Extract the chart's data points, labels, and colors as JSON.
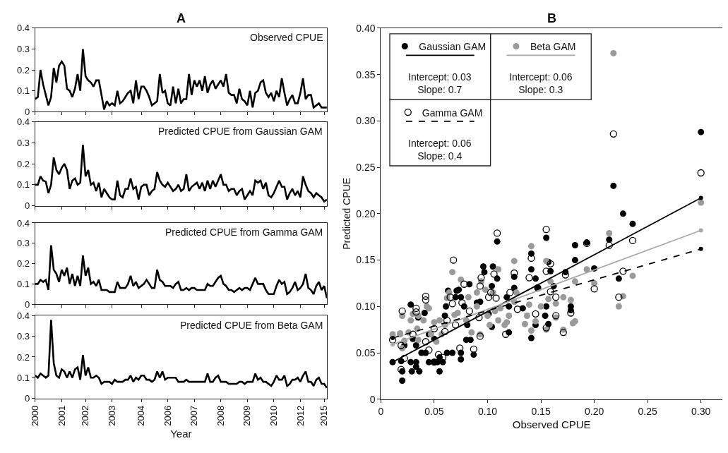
{
  "chart_data": [
    {
      "type": "line",
      "title": "A",
      "subtitle": "Observed CPUE",
      "ylim": [
        0,
        0.4
      ],
      "yticks": [
        0,
        0.1,
        0.2,
        0.3,
        0.4
      ],
      "tick_labels": "y",
      "grid": false,
      "legend": false,
      "categories": [
        "2000",
        null,
        null,
        null,
        null,
        null,
        null,
        null,
        null,
        null,
        "2001",
        null,
        null,
        null,
        null,
        null,
        null,
        null,
        null,
        "2002",
        null,
        null,
        null,
        null,
        null,
        null,
        null,
        null,
        null,
        "2003",
        null,
        null,
        null,
        null,
        null,
        null,
        null,
        null,
        null,
        null,
        "2004",
        null,
        null,
        null,
        null,
        null,
        null,
        null,
        null,
        null,
        "2006",
        null,
        null,
        null,
        null,
        null,
        null,
        null,
        null,
        null,
        "2007",
        null,
        null,
        null,
        null,
        null,
        null,
        null,
        null,
        null,
        "2008",
        null,
        null,
        null,
        null,
        null,
        null,
        null,
        null,
        null,
        "2009",
        null,
        null,
        null,
        null,
        null,
        null,
        null,
        null,
        null,
        "2010",
        null,
        null,
        null,
        null,
        null,
        null,
        null,
        null,
        null,
        "2012",
        null,
        null,
        null,
        null,
        null,
        null,
        null,
        null,
        "2015",
        null
      ],
      "series": [
        {
          "color": "#000000",
          "values": [
            0.06,
            0.07,
            0.2,
            0.13,
            0.08,
            0.03,
            0.07,
            0.21,
            0.14,
            0.22,
            0.24,
            0.22,
            0.11,
            0.1,
            0.07,
            0.11,
            0.18,
            0.1,
            0.3,
            0.17,
            0.15,
            0.14,
            0.12,
            0.15,
            0.15,
            0.08,
            0.01,
            0.05,
            0.03,
            0.04,
            0.03,
            0.1,
            0.04,
            0.05,
            0.07,
            0.09,
            0.1,
            0.04,
            0.15,
            0.06,
            0.12,
            0.12,
            0.1,
            0.07,
            0.03,
            0.04,
            0.05,
            0.18,
            0.09,
            0.1,
            0.04,
            0.03,
            0.12,
            0.04,
            0.11,
            0.04,
            0.06,
            0.06,
            0.18,
            0.08,
            0.15,
            0.12,
            0.15,
            0.1,
            0.17,
            0.09,
            0.13,
            0.15,
            0.11,
            0.13,
            0.15,
            0.12,
            0.18,
            0.09,
            0.08,
            0.08,
            0.04,
            0.11,
            0.06,
            0.05,
            0.03,
            0.1,
            0.02,
            0.09,
            0.1,
            0.14,
            0.15,
            0.09,
            0.07,
            0.09,
            0.05,
            0.1,
            0.07,
            0.16,
            0.09,
            0.03,
            0.06,
            0.08,
            0.04,
            0.04,
            0.09,
            0.16,
            0.06,
            0.08,
            0.08,
            0.02,
            0.03,
            0.04,
            0.02,
            0.02,
            0.02
          ]
        }
      ]
    },
    {
      "type": "line",
      "subtitle": "Predicted CPUE from Gaussian GAM",
      "ylim": [
        0,
        0.4
      ],
      "yticks": [
        0,
        0.1,
        0.2,
        0.3,
        0.4
      ],
      "tick_labels": "y",
      "grid": false,
      "legend": false,
      "categories": [
        "2000",
        null,
        null,
        null,
        null,
        null,
        null,
        null,
        null,
        null,
        "2001",
        null,
        null,
        null,
        null,
        null,
        null,
        null,
        null,
        "2002",
        null,
        null,
        null,
        null,
        null,
        null,
        null,
        null,
        null,
        "2003",
        null,
        null,
        null,
        null,
        null,
        null,
        null,
        null,
        null,
        null,
        "2004",
        null,
        null,
        null,
        null,
        null,
        null,
        null,
        null,
        null,
        "2006",
        null,
        null,
        null,
        null,
        null,
        null,
        null,
        null,
        null,
        "2007",
        null,
        null,
        null,
        null,
        null,
        null,
        null,
        null,
        null,
        "2008",
        null,
        null,
        null,
        null,
        null,
        null,
        null,
        null,
        null,
        "2009",
        null,
        null,
        null,
        null,
        null,
        null,
        null,
        null,
        null,
        "2010",
        null,
        null,
        null,
        null,
        null,
        null,
        null,
        null,
        null,
        "2012",
        null,
        null,
        null,
        null,
        null,
        null,
        null,
        null,
        "2015",
        null
      ],
      "series": [
        {
          "color": "#000000",
          "values": [
            0.1,
            0.1,
            0.14,
            0.12,
            0.115,
            0.06,
            0.1,
            0.23,
            0.17,
            0.15,
            0.18,
            0.2,
            0.17,
            0.08,
            0.12,
            0.13,
            0.1,
            0.11,
            0.29,
            0.14,
            0.17,
            0.1,
            0.11,
            0.07,
            0.11,
            0.04,
            0.08,
            0.06,
            0.04,
            0.03,
            0.03,
            0.12,
            0.05,
            0.04,
            0.08,
            0.08,
            0.13,
            0.08,
            0.09,
            0.03,
            0.09,
            0.1,
            0.1,
            0.05,
            0.07,
            0.08,
            0.16,
            0.12,
            0.1,
            0.09,
            0.11,
            0.09,
            0.07,
            0.08,
            0.1,
            0.07,
            0.08,
            0.15,
            0.07,
            0.09,
            0.1,
            0.11,
            0.08,
            0.11,
            0.07,
            0.12,
            0.08,
            0.12,
            0.09,
            0.12,
            0.15,
            0.1,
            0.1,
            0.07,
            0.08,
            0.08,
            0.05,
            0.07,
            0.08,
            0.03,
            0.05,
            0.07,
            0.05,
            0.12,
            0.11,
            0.12,
            0.08,
            0.11,
            0.05,
            0.04,
            0.06,
            0.09,
            0.12,
            0.09,
            0.09,
            0.03,
            0.06,
            0.08,
            0.05,
            0.07,
            0.04,
            0.14,
            0.1,
            0.07,
            0.06,
            0.04,
            0.06,
            0.05,
            0.04,
            0.02,
            0.03
          ]
        }
      ]
    },
    {
      "type": "line",
      "subtitle": "Predicted CPUE from Gamma GAM",
      "ylim": [
        0,
        0.4
      ],
      "yticks": [
        0,
        0.1,
        0.2,
        0.3,
        0.4
      ],
      "tick_labels": "y",
      "grid": false,
      "legend": false,
      "categories": [
        "2000",
        null,
        null,
        null,
        null,
        null,
        null,
        null,
        null,
        null,
        "2001",
        null,
        null,
        null,
        null,
        null,
        null,
        null,
        null,
        "2002",
        null,
        null,
        null,
        null,
        null,
        null,
        null,
        null,
        null,
        "2003",
        null,
        null,
        null,
        null,
        null,
        null,
        null,
        null,
        null,
        null,
        "2004",
        null,
        null,
        null,
        null,
        null,
        null,
        null,
        null,
        null,
        "2006",
        null,
        null,
        null,
        null,
        null,
        null,
        null,
        null,
        null,
        "2007",
        null,
        null,
        null,
        null,
        null,
        null,
        null,
        null,
        null,
        "2008",
        null,
        null,
        null,
        null,
        null,
        null,
        null,
        null,
        null,
        "2009",
        null,
        null,
        null,
        null,
        null,
        null,
        null,
        null,
        null,
        "2010",
        null,
        null,
        null,
        null,
        null,
        null,
        null,
        null,
        null,
        "2012",
        null,
        null,
        null,
        null,
        null,
        null,
        null,
        null,
        "2015",
        null
      ],
      "series": [
        {
          "color": "#000000",
          "values": [
            0.1,
            0.1,
            0.12,
            0.11,
            0.12,
            0.07,
            0.29,
            0.17,
            0.15,
            0.11,
            0.17,
            0.14,
            0.18,
            0.1,
            0.15,
            0.09,
            0.14,
            0.09,
            0.24,
            0.14,
            0.18,
            0.1,
            0.11,
            0.09,
            0.12,
            0.07,
            0.07,
            0.07,
            0.06,
            0.06,
            0.06,
            0.11,
            0.08,
            0.08,
            0.08,
            0.1,
            0.14,
            0.09,
            0.11,
            0.08,
            0.09,
            0.1,
            0.12,
            0.1,
            0.08,
            0.08,
            0.17,
            0.12,
            0.11,
            0.09,
            0.09,
            0.09,
            0.08,
            0.1,
            0.11,
            0.07,
            0.07,
            0.08,
            0.07,
            0.08,
            0.08,
            0.07,
            0.07,
            0.07,
            0.07,
            0.1,
            0.09,
            0.09,
            0.11,
            0.13,
            0.14,
            0.1,
            0.09,
            0.07,
            0.07,
            0.06,
            0.07,
            0.08,
            0.07,
            0.08,
            0.08,
            0.07,
            0.1,
            0.13,
            0.1,
            0.1,
            0.1,
            0.07,
            0.05,
            0.05,
            0.05,
            0.09,
            0.12,
            0.1,
            0.11,
            0.05,
            0.06,
            0.08,
            0.11,
            0.07,
            0.08,
            0.1,
            0.15,
            0.08,
            0.07,
            0.05,
            0.09,
            0.11,
            0.07,
            0.09,
            0.03
          ]
        }
      ]
    },
    {
      "type": "line",
      "subtitle": "Predicted CPUE from Beta GAM",
      "xlabel": "Year",
      "ylim": [
        0,
        0.4
      ],
      "yticks": [
        0,
        0.1,
        0.2,
        0.3,
        0.4
      ],
      "grid": false,
      "legend": false,
      "categories": [
        "2000",
        null,
        null,
        null,
        null,
        null,
        null,
        null,
        null,
        null,
        "2001",
        null,
        null,
        null,
        null,
        null,
        null,
        null,
        null,
        "2002",
        null,
        null,
        null,
        null,
        null,
        null,
        null,
        null,
        null,
        "2003",
        null,
        null,
        null,
        null,
        null,
        null,
        null,
        null,
        null,
        null,
        "2004",
        null,
        null,
        null,
        null,
        null,
        null,
        null,
        null,
        null,
        "2006",
        null,
        null,
        null,
        null,
        null,
        null,
        null,
        null,
        null,
        "2007",
        null,
        null,
        null,
        null,
        null,
        null,
        null,
        null,
        null,
        "2008",
        null,
        null,
        null,
        null,
        null,
        null,
        null,
        null,
        null,
        "2009",
        null,
        null,
        null,
        null,
        null,
        null,
        null,
        null,
        null,
        "2010",
        null,
        null,
        null,
        null,
        null,
        null,
        null,
        null,
        null,
        "2012",
        null,
        null,
        null,
        null,
        null,
        null,
        null,
        null,
        "2015",
        null
      ],
      "series": [
        {
          "color": "#000000",
          "values": [
            0.11,
            0.1,
            0.12,
            0.11,
            0.1,
            0.11,
            0.38,
            0.17,
            0.11,
            0.1,
            0.14,
            0.13,
            0.1,
            0.13,
            0.1,
            0.14,
            0.15,
            0.09,
            0.21,
            0.11,
            0.15,
            0.1,
            0.1,
            0.11,
            0.1,
            0.07,
            0.08,
            0.08,
            0.08,
            0.07,
            0.09,
            0.08,
            0.08,
            0.08,
            0.09,
            0.09,
            0.11,
            0.08,
            0.1,
            0.09,
            0.11,
            0.11,
            0.09,
            0.09,
            0.08,
            0.09,
            0.13,
            0.1,
            0.13,
            0.09,
            0.1,
            0.1,
            0.1,
            0.1,
            0.08,
            0.08,
            0.08,
            0.09,
            0.08,
            0.08,
            0.08,
            0.08,
            0.08,
            0.08,
            0.08,
            0.12,
            0.08,
            0.08,
            0.1,
            0.11,
            0.08,
            0.08,
            0.08,
            0.07,
            0.07,
            0.07,
            0.07,
            0.08,
            0.08,
            0.07,
            0.08,
            0.08,
            0.08,
            0.12,
            0.09,
            0.1,
            0.08,
            0.08,
            0.07,
            0.06,
            0.08,
            0.11,
            0.09,
            0.09,
            0.11,
            0.06,
            0.07,
            0.09,
            0.09,
            0.1,
            0.08,
            0.11,
            0.13,
            0.08,
            0.08,
            0.06,
            0.09,
            0.1,
            0.07,
            0.07,
            0.05
          ]
        }
      ]
    },
    {
      "type": "scatter",
      "title": "B",
      "xlabel": "Observed CPUE",
      "ylabel": "Predicted CPUE",
      "xlim": [
        0,
        0.32
      ],
      "ylim": [
        0,
        0.4
      ],
      "grid": false,
      "legend": "top left",
      "marker": "circle",
      "xticks": [
        0,
        0.05,
        {
          "value": 0.1,
          "label": "0.10"
        },
        0.15,
        {
          "value": 0.2,
          "label": "0.20"
        },
        0.25,
        {
          "value": 0.3,
          "label": "0.30"
        }
      ],
      "yticks": [
        0,
        0.05,
        {
          "value": 0.1,
          "label": "0.10"
        },
        0.15,
        {
          "value": 0.2,
          "label": "0.20"
        },
        0.25,
        {
          "value": 0.3,
          "label": "0.30"
        },
        0.35,
        {
          "value": 0.4,
          "label": "0.40"
        }
      ],
      "annotations": [
        "Intercept: 0.03\nSlope: 0.7",
        "Intercept: 0.06\nSlope: 0.3",
        "Intercept: 0.06\nSlope: 0.4"
      ],
      "series": [
        {
          "name": "Gaussian GAM",
          "color": "#000000",
          "x": [
            0.218,
            0.3,
            0.227,
            0.236,
            0.214,
            0.193,
            0.182,
            0.182,
            0.2,
            0.223,
            0.173,
            0.155,
            0.109,
            0.141,
            0.141,
            0.157,
            0.159,
            0.162,
            0.147,
            0.145,
            0.155,
            0.157,
            0.154,
            0.145,
            0.141,
            0.133,
            0.125,
            0.125,
            0.118,
            0.12,
            0.12,
            0.105,
            0.109,
            0.104,
            0.096,
            0.097,
            0.09,
            0.093,
            0.101,
            0.104,
            0.083,
            0.081,
            0.08,
            0.084,
            0.087,
            0.075,
            0.075,
            0.075,
            0.071,
            0.07,
            0.063,
            0.061,
            0.06,
            0.067,
            0.062,
            0.058,
            0.055,
            0.053,
            0.05,
            0.055,
            0.045,
            0.042,
            0.038,
            0.036,
            0.033,
            0.033,
            0.029,
            0.028,
            0.028,
            0.041,
            0.035,
            0.03,
            0.033,
            0.02,
            0.019,
            0.022,
            0.02,
            0.011,
            0.178,
            0.178,
            0.078,
            0.073,
            0.045,
            0.05
          ],
          "values": [
            0.23,
            0.288,
            0.2,
            0.189,
            0.172,
            0.169,
            0.166,
            0.15,
            0.141,
            0.13,
            0.137,
            0.174,
            0.17,
            0.157,
            0.14,
            0.148,
            0.138,
            0.122,
            0.12,
            0.13,
            0.1,
            0.081,
            0.09,
            0.08,
            0.066,
            0.098,
            0.132,
            0.12,
            0.11,
            0.1,
            0.072,
            0.143,
            0.13,
            0.122,
            0.143,
            0.137,
            0.104,
            0.105,
            0.092,
            0.078,
            0.124,
            0.08,
            0.064,
            0.064,
            0.048,
            0.05,
            0.043,
            0.11,
            0.117,
            0.11,
            0.117,
            0.1,
            0.09,
            0.05,
            0.05,
            0.04,
            0.03,
            0.04,
            0.04,
            0.045,
            0.04,
            0.05,
            0.05,
            0.03,
            0.04,
            0.035,
            0.03,
            0.04,
            0.102,
            0.093,
            0.088,
            0.065,
            0.058,
            0.03,
            0.041,
            0.058,
            0.02,
            0.04,
            0.1,
            0.096,
            0.1,
            0.118,
            0.07,
            0.065
          ]
        },
        {
          "name": "Beta GAM",
          "color": "#9a9a9a",
          "x": [
            0.218,
            0.3,
            0.214,
            0.227,
            0.223,
            0.236,
            0.193,
            0.2,
            0.182,
            0.178,
            0.18,
            0.182,
            0.171,
            0.171,
            0.164,
            0.164,
            0.159,
            0.155,
            0.157,
            0.15,
            0.155,
            0.141,
            0.139,
            0.137,
            0.135,
            0.141,
            0.145,
            0.125,
            0.127,
            0.12,
            0.116,
            0.118,
            0.11,
            0.105,
            0.11,
            0.1,
            0.102,
            0.098,
            0.094,
            0.09,
            0.09,
            0.093,
            0.085,
            0.082,
            0.08,
            0.075,
            0.072,
            0.069,
            0.067,
            0.064,
            0.062,
            0.06,
            0.055,
            0.05,
            0.052,
            0.045,
            0.043,
            0.04,
            0.035,
            0.034,
            0.03,
            0.028,
            0.026,
            0.022,
            0.02,
            0.018,
            0.02,
            0.011,
            0.018,
            0.035,
            0.047,
            0.057,
            0.107,
            0.112,
            0.125
          ],
          "values": [
            0.373,
            0.212,
            0.179,
            0.111,
            0.1,
            0.133,
            0.14,
            0.125,
            0.127,
            0.107,
            0.082,
            0.084,
            0.11,
            0.075,
            0.103,
            0.088,
            0.127,
            0.149,
            0.108,
            0.1,
            0.075,
            0.165,
            0.102,
            0.09,
            0.081,
            0.074,
            0.084,
            0.149,
            0.115,
            0.09,
            0.08,
            0.083,
            0.14,
            0.115,
            0.085,
            0.09,
            0.08,
            0.118,
            0.127,
            0.115,
            0.1,
            0.07,
            0.072,
            0.11,
            0.085,
            0.129,
            0.093,
            0.091,
            0.137,
            0.115,
            0.109,
            0.08,
            0.085,
            0.083,
            0.062,
            0.098,
            0.1,
            0.085,
            0.09,
            0.076,
            0.092,
            0.085,
            0.072,
            0.063,
            0.09,
            0.071,
            0.055,
            0.07,
            0.07,
            0.064,
            0.07,
            0.07,
            0.095,
            0.098,
            0.105
          ]
        },
        {
          "name": "Gamma GAM",
          "color": "#000000",
          "marker": "circle-open",
          "x": [
            0.218,
            0.3,
            0.236,
            0.214,
            0.193,
            0.227,
            0.223,
            0.2,
            0.178,
            0.173,
            0.171,
            0.164,
            0.164,
            0.159,
            0.159,
            0.155,
            0.155,
            0.155,
            0.147,
            0.145,
            0.141,
            0.139,
            0.128,
            0.125,
            0.121,
            0.117,
            0.109,
            0.106,
            0.108,
            0.103,
            0.101,
            0.094,
            0.093,
            0.092,
            0.093,
            0.087,
            0.083,
            0.078,
            0.076,
            0.074,
            0.068,
            0.065,
            0.067,
            0.062,
            0.058,
            0.054,
            0.05,
            0.045,
            0.042,
            0.042,
            0.042,
            0.033,
            0.033,
            0.03,
            0.02,
            0.022,
            0.019,
            0.019,
            0.011,
            0.05,
            0.06,
            0.07
          ],
          "values": [
            0.286,
            0.244,
            0.171,
            0.166,
            0.168,
            0.138,
            0.11,
            0.119,
            0.093,
            0.134,
            0.072,
            0.11,
            0.09,
            0.146,
            0.116,
            0.183,
            0.138,
            0.077,
            0.12,
            0.092,
            0.152,
            0.131,
            0.097,
            0.136,
            0.115,
            0.07,
            0.179,
            0.135,
            0.109,
            0.115,
            0.11,
            0.131,
            0.122,
            0.088,
            0.068,
            0.054,
            0.095,
            0.124,
            0.104,
            0.055,
            0.15,
            0.11,
            0.103,
            0.085,
            0.045,
            0.048,
            0.04,
            0.053,
            0.062,
            0.111,
            0.107,
            0.098,
            0.094,
            0.07,
            0.095,
            0.044,
            0.058,
            0.032,
            0.064,
            0.076,
            0.073,
            0.08
          ]
        },
        {
          "type": "line",
          "color": "#000000",
          "line_style": "solid",
          "x": [
            0.011,
            0.3
          ],
          "values": [
            0.04,
            0.217
          ]
        },
        {
          "type": "line",
          "color": "#a8a8a8",
          "line_style": "solid",
          "x": [
            0.011,
            0.3
          ],
          "values": [
            0.059,
            0.182
          ]
        },
        {
          "type": "line",
          "color": "#000000",
          "line_style": "dashed",
          "x": [
            0.011,
            0.3
          ],
          "values": [
            0.066,
            0.162
          ]
        }
      ]
    }
  ]
}
